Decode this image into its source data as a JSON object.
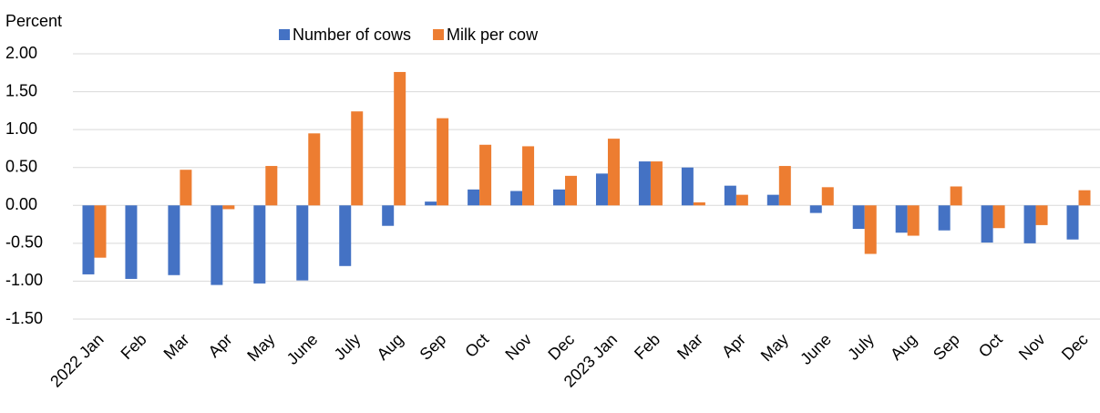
{
  "chart_data": {
    "type": "bar",
    "y_label": "Percent",
    "categories": [
      "2022 Jan",
      "Feb",
      "Mar",
      "Apr",
      "May",
      "June",
      "July",
      "Aug",
      "Sep",
      "Oct",
      "Nov",
      "Dec",
      "2023 Jan",
      "Feb",
      "Mar",
      "Apr",
      "May",
      "June",
      "July",
      "Aug",
      "Sep",
      "Oct",
      "Nov",
      "Dec"
    ],
    "series": [
      {
        "name": "Number of cows",
        "color": "#4472c4",
        "values": [
          -0.91,
          -0.97,
          -0.92,
          -1.05,
          -1.03,
          -0.99,
          -0.8,
          -0.27,
          0.05,
          0.21,
          0.19,
          0.21,
          0.42,
          0.58,
          0.5,
          0.26,
          0.14,
          -0.1,
          -0.31,
          -0.36,
          -0.33,
          -0.49,
          -0.5,
          -0.45
        ]
      },
      {
        "name": "Milk per cow",
        "color": "#ed7d31",
        "values": [
          -0.69,
          0,
          0.47,
          -0.05,
          0.52,
          0.95,
          1.24,
          1.76,
          1.15,
          0.8,
          0.78,
          0.39,
          0.88,
          0.58,
          0.04,
          0.14,
          0.52,
          0.24,
          -0.64,
          -0.4,
          0.25,
          -0.3,
          -0.26,
          0.2
        ]
      }
    ],
    "ylim": [
      -1.5,
      2.0
    ],
    "yticks": [
      {
        "value": -1.5,
        "label": "-1.50"
      },
      {
        "value": -1,
        "label": "-1.00"
      },
      {
        "value": -0.5,
        "label": "-0.50"
      },
      {
        "value": 0,
        "label": "0.00"
      },
      {
        "value": 0.5,
        "label": "0.50"
      },
      {
        "value": 1,
        "label": "1.00"
      },
      {
        "value": 1.5,
        "label": "1.50"
      },
      {
        "value": 2,
        "label": "2.00"
      }
    ],
    "grid": true,
    "legend": "top"
  }
}
